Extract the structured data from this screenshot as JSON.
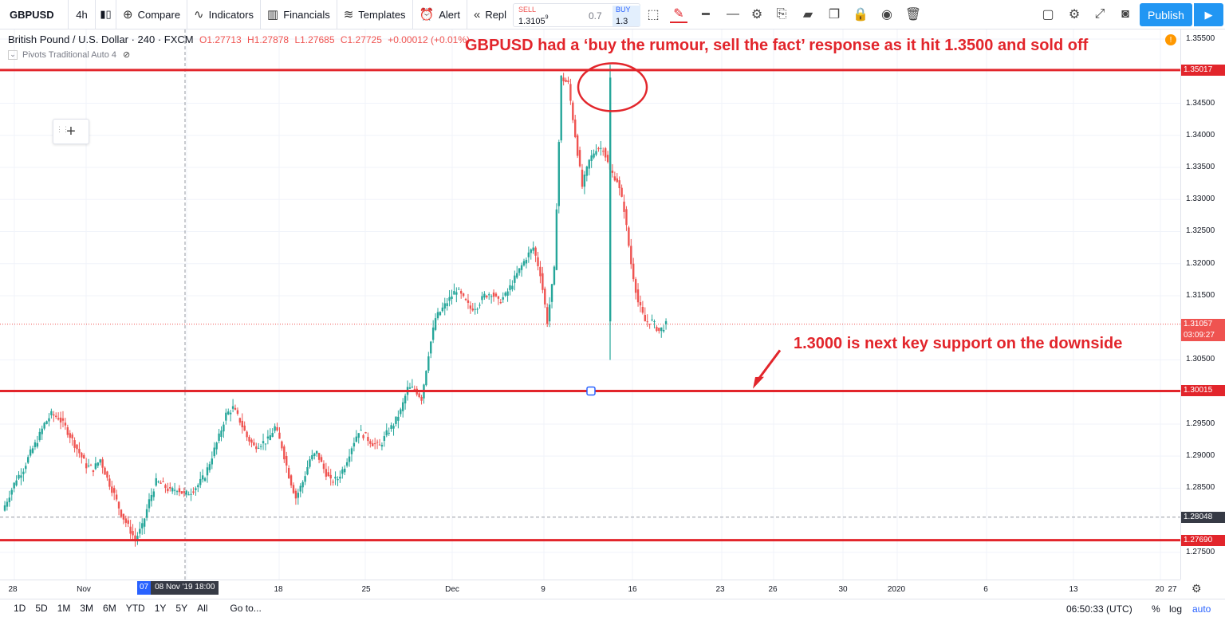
{
  "toolbar": {
    "symbol": "GBPUSD",
    "interval": "4h",
    "compare": "Compare",
    "indicators": "Indicators",
    "financials": "Financials",
    "templates": "Templates",
    "alert": "Alert",
    "replay": "Repl",
    "publish": "Publish"
  },
  "trade": {
    "sell_label": "SELL",
    "sell_price": "1.3105",
    "sell_price_sup": "9",
    "spread": "0.7",
    "buy_label": "BUY",
    "buy_price": "1.3"
  },
  "legend": {
    "title": "British Pound / U.S. Dollar · 240 · FXCM",
    "open": "O1.27713",
    "high": "H1.27878",
    "low": "L1.27685",
    "close": "C1.27725",
    "change": "+0.00012 (+0.01%)",
    "pivots": "Pivots Traditional Auto 4"
  },
  "annotations": {
    "top": "GBPUSD had a ‘buy the rumour, sell the fact’ response as it hit 1.3500 and sold off",
    "support": "1.3000 is next key support on the downside"
  },
  "price_axis": {
    "ticks": [
      "1.35500",
      "1.34500",
      "1.34000",
      "1.33500",
      "1.33000",
      "1.32500",
      "1.32000",
      "1.31500",
      "1.30500",
      "1.29500",
      "1.29000",
      "1.28500",
      "1.27500"
    ],
    "labels": {
      "resistance": "1.35017",
      "current": "1.31057",
      "countdown": "03:09:27",
      "support": "1.30015",
      "crosshair": "1.28048",
      "low": "1.27690"
    }
  },
  "time_axis": {
    "ticks": [
      "28",
      "Nov",
      "18",
      "25",
      "Dec",
      "9",
      "16",
      "23",
      "26",
      "30",
      "2020",
      "6",
      "13",
      "20",
      "27"
    ],
    "cursor_day": "07",
    "cursor_full": "08 Nov '19   18:00"
  },
  "bottom": {
    "ranges": [
      "1D",
      "5D",
      "1M",
      "3M",
      "6M",
      "YTD",
      "1Y",
      "5Y",
      "All"
    ],
    "goto": "Go to...",
    "clock": "06:50:33 (UTC)",
    "pct": "%",
    "log": "log",
    "auto": "auto"
  },
  "colors": {
    "up": "#26a69a",
    "down": "#ef5350",
    "line": "#e2252b",
    "accent": "#2196f3"
  },
  "chart_data": {
    "type": "candlestick",
    "symbol": "GBPUSD",
    "timeframe": "240",
    "ylim": [
      1.273,
      1.356
    ],
    "horizontal_lines": [
      1.35017,
      1.30015,
      1.2769
    ],
    "last_price": 1.31057,
    "path": [
      1.2815,
      1.284,
      1.2865,
      1.288,
      1.2905,
      1.2925,
      1.295,
      1.2965,
      1.296,
      1.2945,
      1.2925,
      1.2905,
      1.2885,
      1.288,
      1.2895,
      1.2865,
      1.284,
      1.281,
      1.279,
      1.277,
      1.279,
      1.283,
      1.286,
      1.2855,
      1.2845,
      1.285,
      1.284,
      1.2845,
      1.2855,
      1.287,
      1.29,
      1.293,
      1.2965,
      1.2975,
      1.2955,
      1.293,
      1.2915,
      1.292,
      1.2925,
      1.2945,
      1.2915,
      1.287,
      1.2835,
      1.286,
      1.2895,
      1.2905,
      1.288,
      1.286,
      1.2865,
      1.2885,
      1.2915,
      1.294,
      1.293,
      1.292,
      1.2915,
      1.2935,
      1.295,
      1.297,
      1.3005,
      1.3005,
      1.299,
      1.306,
      1.3115,
      1.313,
      1.3145,
      1.316,
      1.3145,
      1.313,
      1.3135,
      1.315,
      1.3155,
      1.314,
      1.315,
      1.317,
      1.319,
      1.321,
      1.3225,
      1.3185,
      1.311,
      1.319,
      1.349,
      1.348,
      1.34,
      1.332,
      1.336,
      1.338,
      1.338,
      1.3345,
      1.333,
      1.3285,
      1.32,
      1.314,
      1.311,
      1.311,
      1.3095,
      1.3105
    ]
  }
}
